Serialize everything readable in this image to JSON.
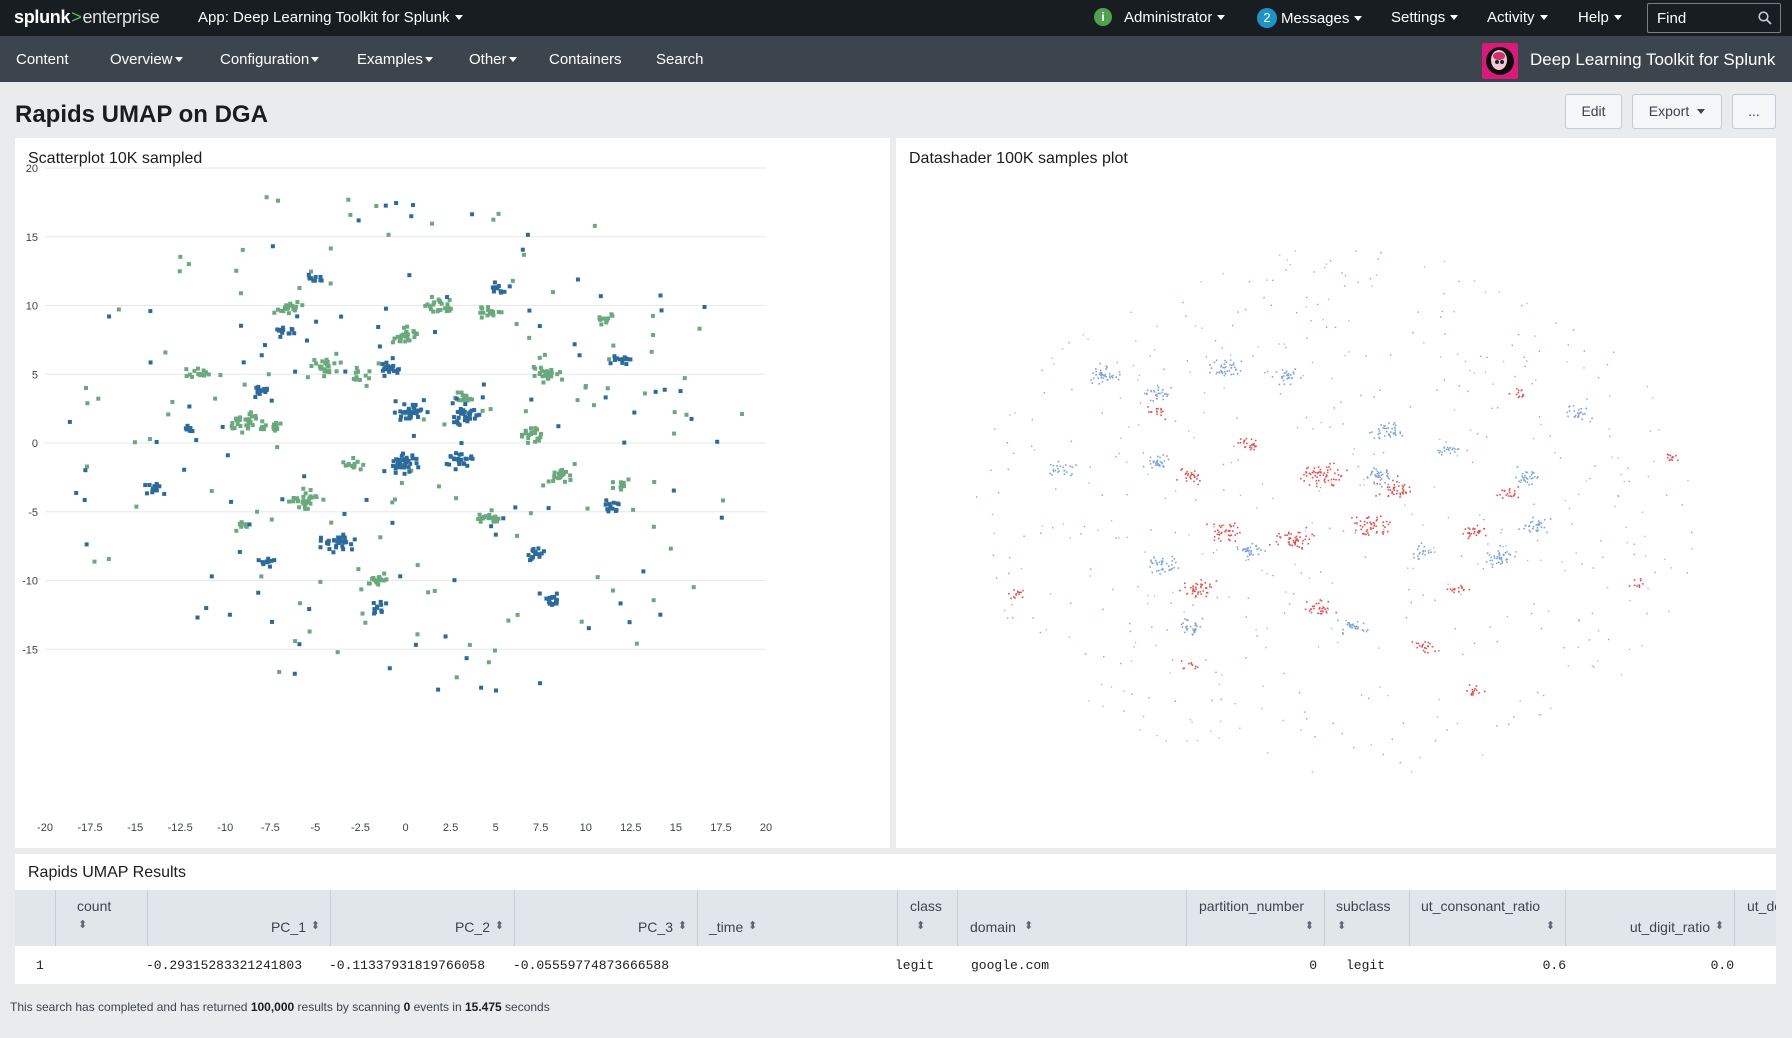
{
  "topbar": {
    "logo_main": "splunk",
    "logo_gt": ">",
    "logo_sub": "enterprise",
    "app_label": "App: Deep Learning Toolkit for Splunk",
    "status_icon": "i",
    "user": "Administrator",
    "messages_count": "2",
    "messages": "Messages",
    "settings": "Settings",
    "activity": "Activity",
    "help": "Help",
    "find_placeholder": "Find"
  },
  "appbar": {
    "items": [
      "Content",
      "Overview",
      "Configuration",
      "Examples",
      "Other",
      "Containers",
      "Search"
    ],
    "app_title": "Deep Learning Toolkit for Splunk"
  },
  "dashboard": {
    "title": "Rapids UMAP on DGA",
    "edit": "Edit",
    "export": "Export",
    "more": "..."
  },
  "panels": {
    "left_title": "Scatterplot 10K sampled",
    "right_title": "Datashader 100K samples plot",
    "table_title": "Rapids UMAP Results"
  },
  "colors": {
    "legit": "#6aa87e",
    "dga": "#2c6a9c",
    "ds_blue": "#7fa4d8",
    "ds_red": "#e05050"
  },
  "chart_data": [
    {
      "type": "scatter",
      "title": "Scatterplot 10K sampled",
      "xlim": [
        -20,
        20
      ],
      "ylim": [
        -20,
        20
      ],
      "xticks": [
        "-20",
        "-17.5",
        "-15",
        "-12.5",
        "-10",
        "-7.5",
        "-5",
        "-2.5",
        "0",
        "2.5",
        "5",
        "7.5",
        "10",
        "12.5",
        "15",
        "17.5",
        "20"
      ],
      "yticks": [
        "20",
        "15",
        "10",
        "5",
        "0",
        "-5",
        "-10",
        "-15"
      ],
      "grid": true,
      "series": [
        {
          "color": "#6aa87e",
          "clusters": [
            {
              "x": -6.5,
              "y": 9.8,
              "n": 20
            },
            {
              "x": -4.5,
              "y": 5.5,
              "n": 24
            },
            {
              "x": -9,
              "y": 1.5,
              "n": 28
            },
            {
              "x": -7.5,
              "y": 1.2,
              "n": 18
            },
            {
              "x": -11.5,
              "y": 5,
              "n": 14
            },
            {
              "x": 0,
              "y": 7.8,
              "n": 26
            },
            {
              "x": 2,
              "y": 10,
              "n": 22
            },
            {
              "x": 7.8,
              "y": 5,
              "n": 26
            },
            {
              "x": 7,
              "y": 0.6,
              "n": 20
            },
            {
              "x": 8.5,
              "y": -2.4,
              "n": 22
            },
            {
              "x": -5.5,
              "y": -4.2,
              "n": 28
            },
            {
              "x": -1.5,
              "y": -10,
              "n": 18
            },
            {
              "x": 4.5,
              "y": -5.5,
              "n": 20
            },
            {
              "x": 4.5,
              "y": 9.5,
              "n": 14
            },
            {
              "x": 11,
              "y": 9,
              "n": 12
            },
            {
              "x": 3.2,
              "y": 3.3,
              "n": 14
            },
            {
              "x": -2.5,
              "y": 5,
              "n": 12
            },
            {
              "x": -3,
              "y": -1.5,
              "n": 14
            },
            {
              "x": 12,
              "y": -3,
              "n": 10
            },
            {
              "x": -9,
              "y": -6,
              "n": 10
            }
          ]
        },
        {
          "color": "#2c6a9c",
          "clusters": [
            {
              "x": 0.3,
              "y": 2.3,
              "n": 34
            },
            {
              "x": 0,
              "y": -1.5,
              "n": 36
            },
            {
              "x": 3.3,
              "y": 2.1,
              "n": 30
            },
            {
              "x": 3.1,
              "y": -1.2,
              "n": 24
            },
            {
              "x": -3.8,
              "y": -7.3,
              "n": 30
            },
            {
              "x": -1,
              "y": 5.5,
              "n": 20
            },
            {
              "x": -6.7,
              "y": 8.1,
              "n": 14
            },
            {
              "x": -8,
              "y": 3.8,
              "n": 16
            },
            {
              "x": -14,
              "y": -3.3,
              "n": 14
            },
            {
              "x": 7.3,
              "y": -8.1,
              "n": 16
            },
            {
              "x": 8.1,
              "y": -11.5,
              "n": 16
            },
            {
              "x": -5,
              "y": 12,
              "n": 10
            },
            {
              "x": 5.3,
              "y": 11.3,
              "n": 10
            },
            {
              "x": 12,
              "y": 6,
              "n": 12
            },
            {
              "x": 11.5,
              "y": -4.7,
              "n": 12
            },
            {
              "x": -7.8,
              "y": -8.6,
              "n": 10
            },
            {
              "x": -12,
              "y": 1,
              "n": 8
            },
            {
              "x": -1.5,
              "y": -12,
              "n": 10
            }
          ]
        }
      ]
    },
    {
      "type": "scatter",
      "title": "Datashader 100K samples plot",
      "series": [
        {
          "color": "#7fa4d8",
          "clusters": [
            {
              "x": 0.23,
              "y": 0.28,
              "n": 40
            },
            {
              "x": 0.37,
              "y": 0.27,
              "n": 40
            },
            {
              "x": 0.44,
              "y": 0.28,
              "n": 30
            },
            {
              "x": 0.56,
              "y": 0.37,
              "n": 40
            },
            {
              "x": 0.29,
              "y": 0.31,
              "n": 30
            },
            {
              "x": 0.55,
              "y": 0.44,
              "n": 40
            },
            {
              "x": 0.29,
              "y": 0.42,
              "n": 30
            },
            {
              "x": 0.3,
              "y": 0.58,
              "n": 40
            },
            {
              "x": 0.33,
              "y": 0.68,
              "n": 30
            },
            {
              "x": 0.4,
              "y": 0.56,
              "n": 30
            },
            {
              "x": 0.52,
              "y": 0.68,
              "n": 30
            },
            {
              "x": 0.69,
              "y": 0.57,
              "n": 40
            },
            {
              "x": 0.73,
              "y": 0.52,
              "n": 30
            },
            {
              "x": 0.72,
              "y": 0.44,
              "n": 30
            },
            {
              "x": 0.78,
              "y": 0.34,
              "n": 25
            },
            {
              "x": 0.18,
              "y": 0.43,
              "n": 25
            },
            {
              "x": 0.63,
              "y": 0.4,
              "n": 20
            },
            {
              "x": 0.6,
              "y": 0.56,
              "n": 20
            }
          ]
        },
        {
          "color": "#e05050",
          "clusters": [
            {
              "x": 0.48,
              "y": 0.44,
              "n": 60
            },
            {
              "x": 0.54,
              "y": 0.52,
              "n": 50
            },
            {
              "x": 0.57,
              "y": 0.46,
              "n": 40
            },
            {
              "x": 0.45,
              "y": 0.54,
              "n": 50
            },
            {
              "x": 0.34,
              "y": 0.62,
              "n": 40
            },
            {
              "x": 0.37,
              "y": 0.53,
              "n": 40
            },
            {
              "x": 0.48,
              "y": 0.65,
              "n": 30
            },
            {
              "x": 0.33,
              "y": 0.44,
              "n": 25
            },
            {
              "x": 0.4,
              "y": 0.39,
              "n": 25
            },
            {
              "x": 0.66,
              "y": 0.53,
              "n": 25
            },
            {
              "x": 0.7,
              "y": 0.47,
              "n": 20
            },
            {
              "x": 0.29,
              "y": 0.34,
              "n": 15
            },
            {
              "x": 0.13,
              "y": 0.63,
              "n": 15
            },
            {
              "x": 0.64,
              "y": 0.62,
              "n": 15
            },
            {
              "x": 0.6,
              "y": 0.71,
              "n": 20
            },
            {
              "x": 0.71,
              "y": 0.31,
              "n": 12
            },
            {
              "x": 0.89,
              "y": 0.41,
              "n": 12
            },
            {
              "x": 0.66,
              "y": 0.78,
              "n": 15
            },
            {
              "x": 0.33,
              "y": 0.74,
              "n": 10
            },
            {
              "x": 0.85,
              "y": 0.61,
              "n": 10
            }
          ]
        }
      ]
    }
  ],
  "table": {
    "columns": [
      {
        "label": "count",
        "align": "center"
      },
      {
        "label": "PC_1",
        "align": "right"
      },
      {
        "label": "PC_2",
        "align": "right"
      },
      {
        "label": "PC_3",
        "align": "right"
      },
      {
        "label": "_time",
        "align": "left"
      },
      {
        "label": "class",
        "align": "center"
      },
      {
        "label": "domain",
        "align": "left"
      },
      {
        "label": "partition_number",
        "align": "center"
      },
      {
        "label": "subclass",
        "align": "center"
      },
      {
        "label": "ut_consonant_ratio",
        "align": "center"
      },
      {
        "label": "ut_digit_ratio",
        "align": "right"
      },
      {
        "label": "ut_domain_",
        "align": "left"
      }
    ],
    "rows": [
      [
        "1",
        "-0.29315283321241803",
        "-0.11337931819766058",
        "-0.05559774873666588",
        "",
        "legit",
        "google.com",
        "0",
        "legit",
        "0.6",
        "0.0",
        ""
      ]
    ]
  },
  "footer": {
    "pre": "This search has completed and has returned ",
    "results": "100,000",
    "mid": " results by scanning ",
    "events": "0",
    "mid2": " events in ",
    "seconds": "15.475",
    "post": " seconds"
  }
}
